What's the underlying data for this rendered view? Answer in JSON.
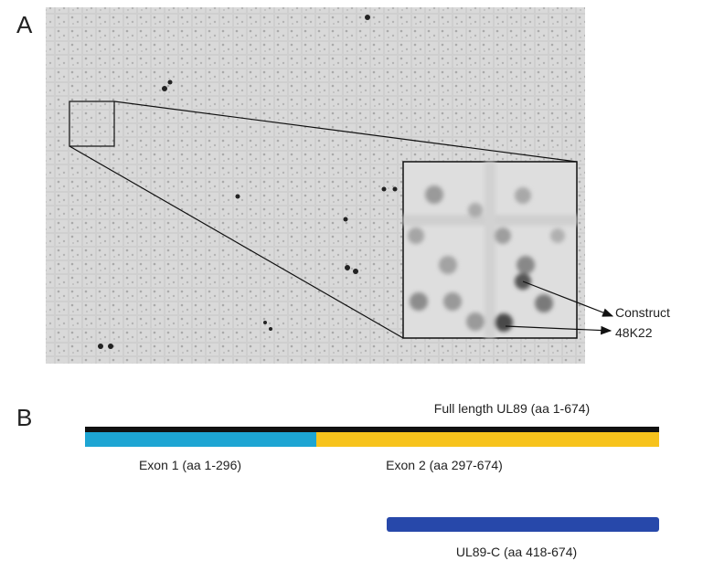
{
  "panel_a": {
    "label": "A",
    "annotation": [
      "Construct",
      "48K22"
    ]
  },
  "panel_b": {
    "label": "B",
    "full_length": "Full length UL89 (aa 1-674)",
    "exon1": "Exon 1 (aa 1-296)",
    "exon2": "Exon 2 (aa 297-674)",
    "fragment": "UL89-C (aa 418-674)"
  }
}
